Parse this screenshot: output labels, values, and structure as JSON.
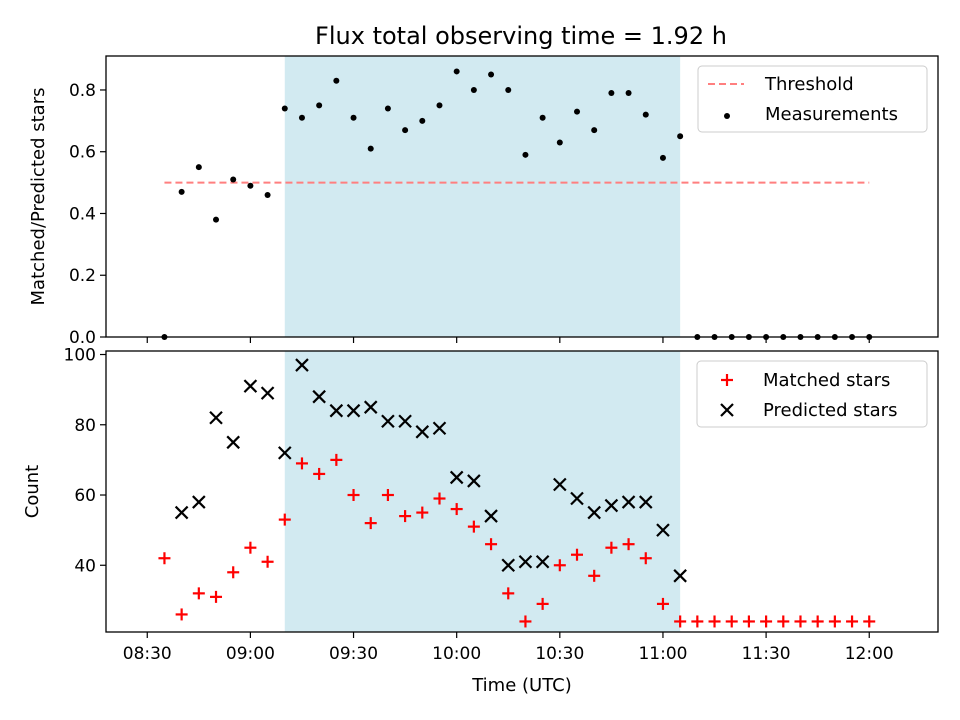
{
  "chart_data": [
    {
      "type": "scatter",
      "title": "Flux total observing time = 1.92 h",
      "ylabel": "Matched/Predicted stars",
      "xlabel": "",
      "ylim": [
        0,
        0.91
      ],
      "yticks": [
        "0.0",
        "0.2",
        "0.4",
        "0.6",
        "0.8"
      ],
      "yticks_values": [
        0,
        0.2,
        0.4,
        0.6,
        0.8
      ],
      "shaded_region": [
        "09:10",
        "11:05"
      ],
      "shade_color": "#add8e6",
      "threshold": {
        "name": "Threshold",
        "value": 0.5,
        "x_from": "08:35",
        "x_to": "12:00",
        "color": "#ff7f7f"
      },
      "series": [
        {
          "name": "Measurements",
          "color": "#000000",
          "marker": "dot",
          "x": [
            "08:35",
            "08:40",
            "08:45",
            "08:50",
            "08:55",
            "09:00",
            "09:05",
            "09:10",
            "09:15",
            "09:20",
            "09:25",
            "09:30",
            "09:35",
            "09:40",
            "09:45",
            "09:50",
            "09:55",
            "10:00",
            "10:05",
            "10:10",
            "10:15",
            "10:20",
            "10:25",
            "10:30",
            "10:35",
            "10:40",
            "10:45",
            "10:50",
            "10:55",
            "11:00",
            "11:05",
            "11:10",
            "11:15",
            "11:20",
            "11:25",
            "11:30",
            "11:35",
            "11:40",
            "11:45",
            "11:50",
            "11:55",
            "12:00"
          ],
          "y": [
            0.0,
            0.47,
            0.55,
            0.38,
            0.51,
            0.49,
            0.46,
            0.74,
            0.71,
            0.75,
            0.83,
            0.71,
            0.61,
            0.74,
            0.67,
            0.7,
            0.75,
            0.86,
            0.8,
            0.85,
            0.8,
            0.59,
            0.71,
            0.63,
            0.73,
            0.67,
            0.79,
            0.79,
            0.72,
            0.58,
            0.65,
            0.0,
            0.0,
            0.0,
            0.0,
            0.0,
            0.0,
            0.0,
            0.0,
            0.0,
            0.0,
            0.0
          ]
        }
      ]
    },
    {
      "type": "scatter",
      "title": "",
      "ylabel": "Count",
      "xlabel": "Time (UTC)",
      "ylim": [
        21,
        101
      ],
      "yticks": [
        "40",
        "60",
        "80",
        "100"
      ],
      "yticks_values": [
        40,
        60,
        80,
        100
      ],
      "xticks": [
        "08:30",
        "09:00",
        "09:30",
        "10:00",
        "10:30",
        "11:00",
        "11:30",
        "12:00"
      ],
      "shaded_region": [
        "09:10",
        "11:05"
      ],
      "shade_color": "#add8e6",
      "series": [
        {
          "name": "Matched stars",
          "color": "#ff0000",
          "marker": "plus",
          "x": [
            "08:35",
            "08:40",
            "08:45",
            "08:50",
            "08:55",
            "09:00",
            "09:05",
            "09:10",
            "09:15",
            "09:20",
            "09:25",
            "09:30",
            "09:35",
            "09:40",
            "09:45",
            "09:50",
            "09:55",
            "10:00",
            "10:05",
            "10:10",
            "10:15",
            "10:20",
            "10:25",
            "10:30",
            "10:35",
            "10:40",
            "10:45",
            "10:50",
            "10:55",
            "11:00",
            "11:05",
            "11:10",
            "11:15",
            "11:20",
            "11:25",
            "11:30",
            "11:35",
            "11:40",
            "11:45",
            "11:50",
            "11:55",
            "12:00"
          ],
          "y": [
            42,
            26,
            32,
            31,
            38,
            45,
            41,
            53,
            69,
            66,
            70,
            60,
            52,
            60,
            54,
            55,
            59,
            56,
            51,
            46,
            32,
            24,
            29,
            40,
            43,
            37,
            45,
            46,
            42,
            29,
            24,
            24,
            24,
            24,
            24,
            24,
            24,
            24,
            24,
            24,
            24,
            24
          ]
        },
        {
          "name": "Predicted stars",
          "color": "#000000",
          "marker": "x",
          "x": [
            "08:40",
            "08:45",
            "08:50",
            "08:55",
            "09:00",
            "09:05",
            "09:10",
            "09:15",
            "09:20",
            "09:25",
            "09:30",
            "09:35",
            "09:40",
            "09:45",
            "09:50",
            "09:55",
            "10:00",
            "10:05",
            "10:10",
            "10:15",
            "10:20",
            "10:25",
            "10:30",
            "10:35",
            "10:40",
            "10:45",
            "10:50",
            "10:55",
            "11:00",
            "11:05"
          ],
          "y": [
            55,
            58,
            82,
            75,
            91,
            89,
            72,
            97,
            88,
            84,
            84,
            85,
            81,
            81,
            78,
            79,
            65,
            64,
            54,
            40,
            41,
            41,
            63,
            59,
            55,
            57,
            58,
            58,
            50,
            37
          ]
        }
      ]
    }
  ]
}
